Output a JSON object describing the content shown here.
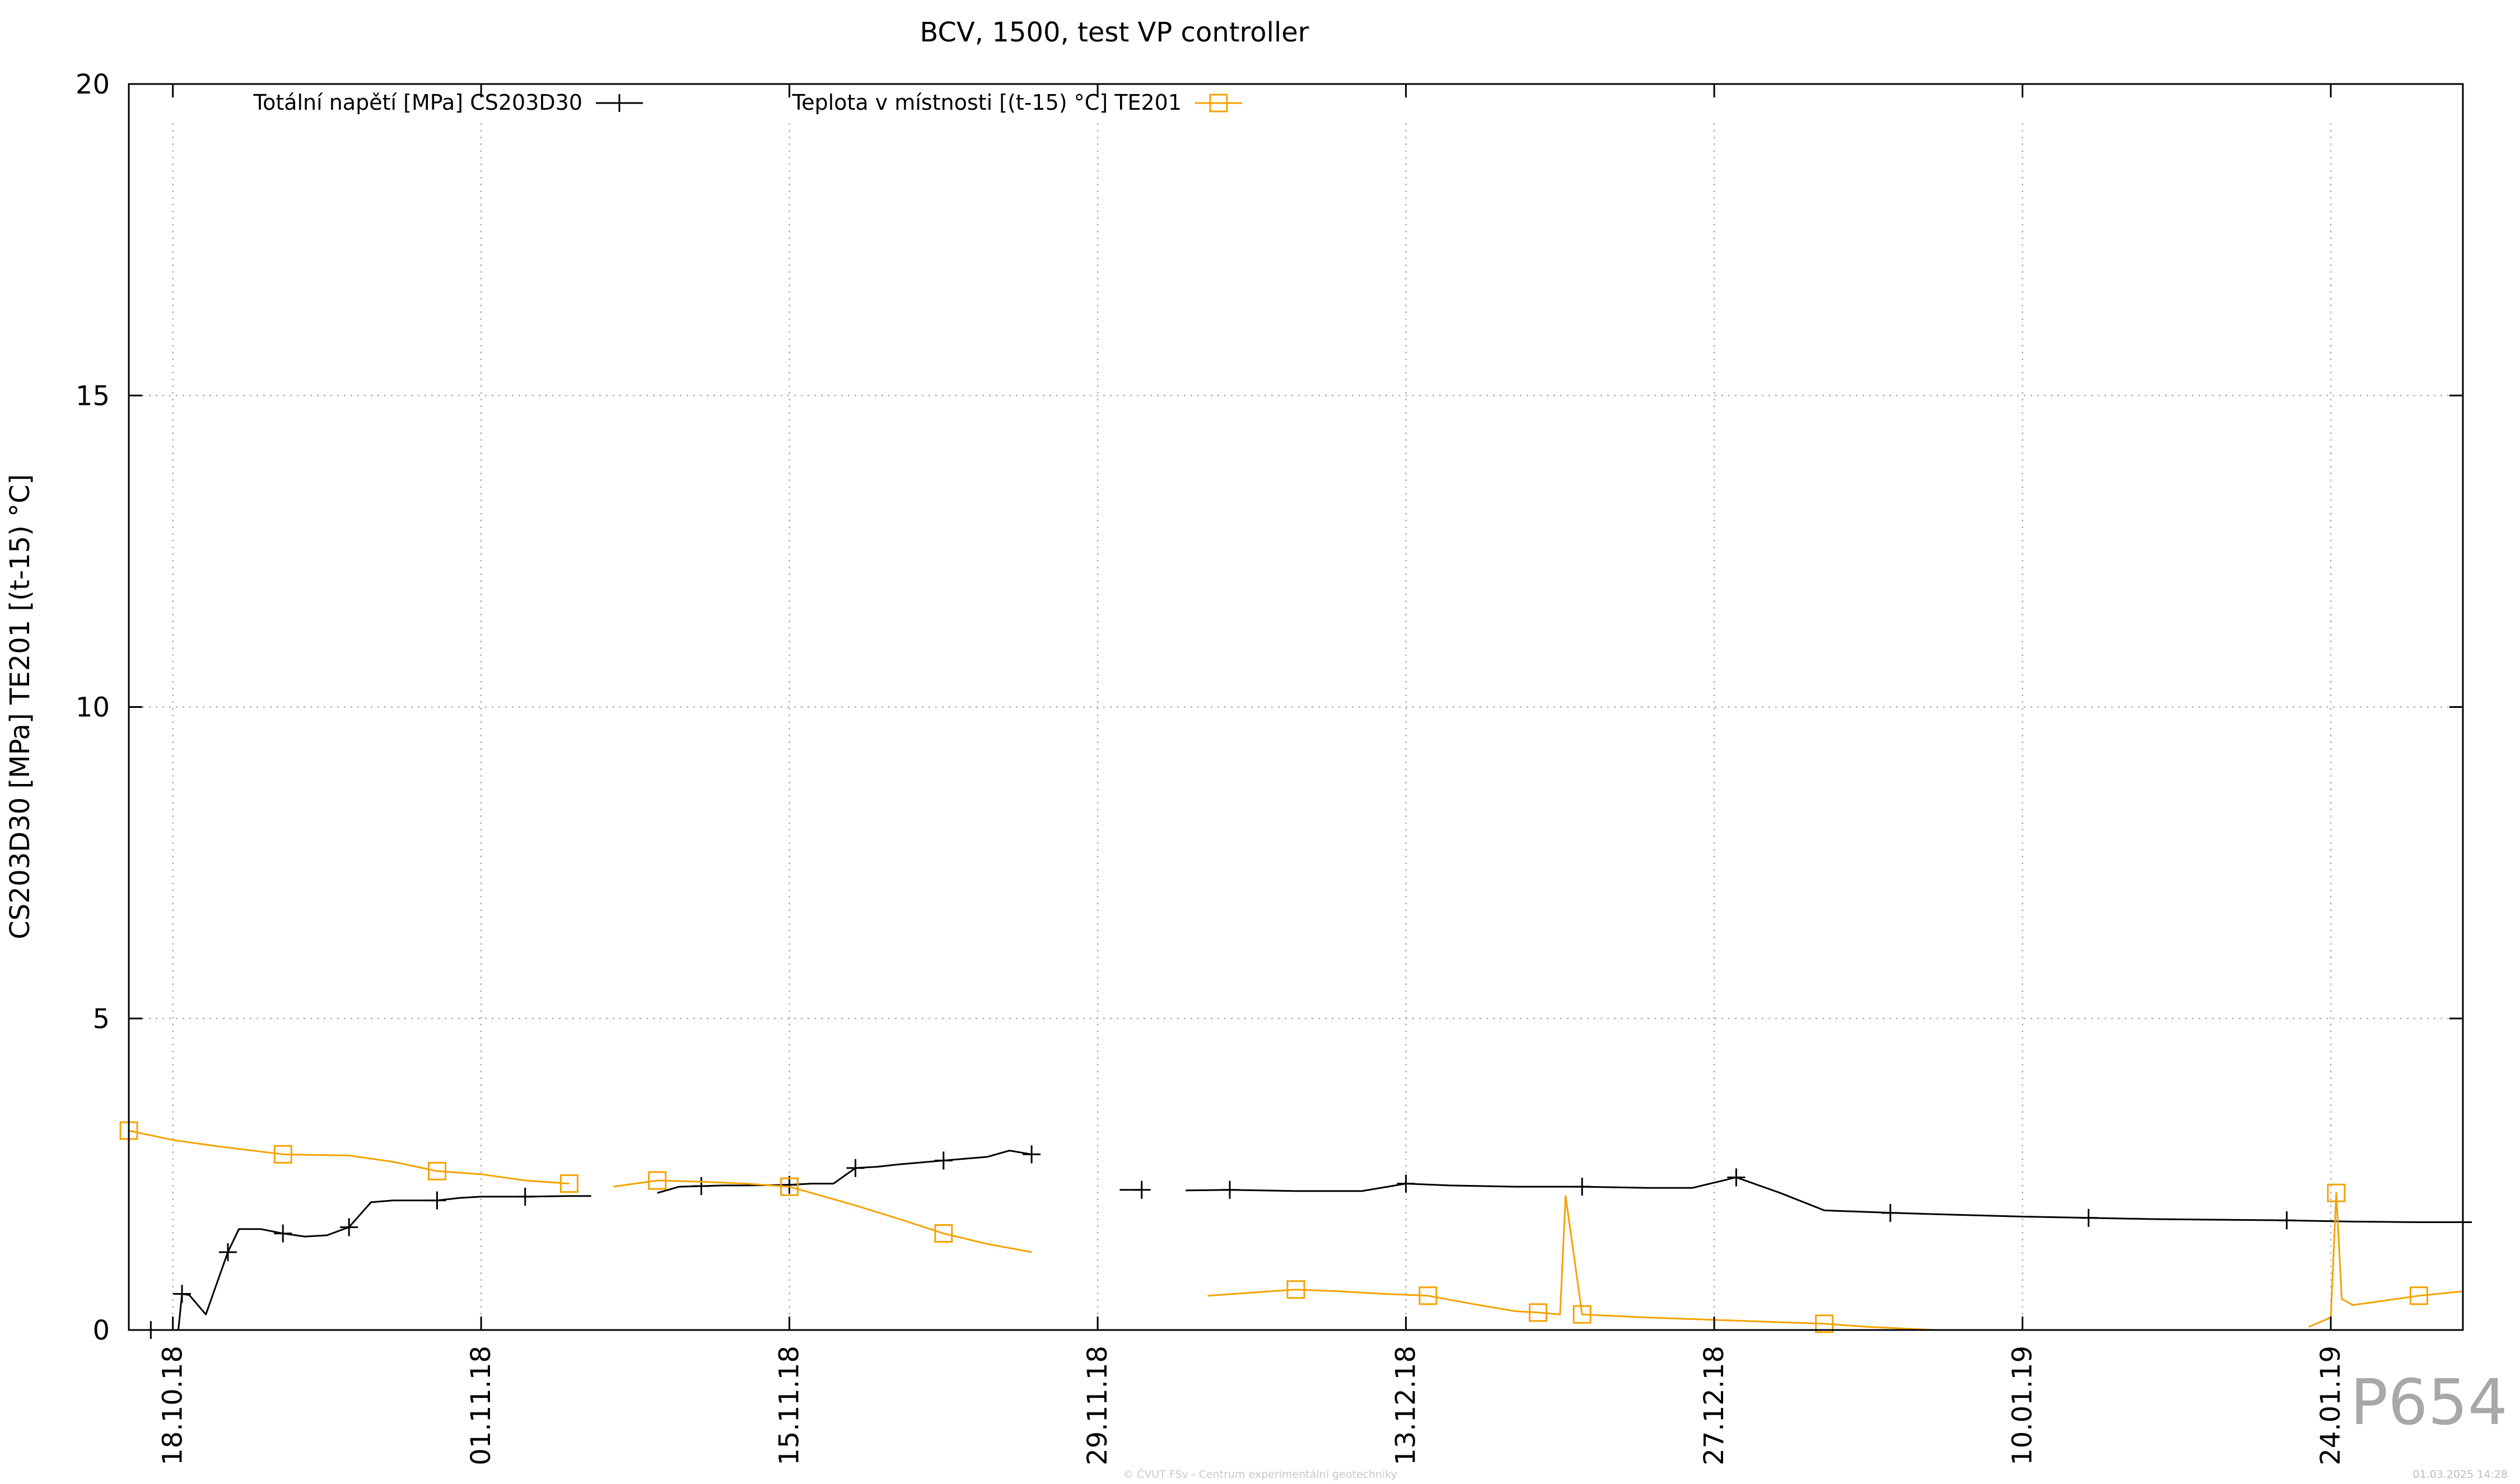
{
  "chart_data": {
    "type": "line",
    "title": "BCV, 1500, test VP controller",
    "ylabel": "CS203D30 [MPa] TE201 [(t-15) °C]",
    "xlabel": "",
    "ylim": [
      0,
      20
    ],
    "y_ticks": [
      "0",
      "5",
      "10",
      "15",
      "20"
    ],
    "x_ticks": [
      "18.10.18",
      "01.11.18",
      "15.11.18",
      "29.11.18",
      "13.12.18",
      "27.12.18",
      "10.01.19",
      "24.01.19"
    ],
    "xlim": [
      "2018-10-16",
      "2019-01-30"
    ],
    "grid": true,
    "legend_position": "top",
    "series": [
      {
        "name": "Totální napětí [MPa] CS203D30",
        "color": "#000000",
        "marker": "plus",
        "x": [
          "2018-10-17",
          "2018-10-17T12:00",
          "2018-10-18T06:00",
          "2018-10-18T10:00",
          "2018-10-18T18:00",
          "2018-10-19T12:00",
          "2018-10-20T12:00",
          "2018-10-21",
          "2018-10-22",
          "2018-10-23",
          "2018-10-24",
          "2018-10-25",
          "2018-10-26",
          "2018-10-27",
          "2018-10-28",
          "2018-10-30",
          "2018-10-31",
          "2018-11-01",
          "2018-11-03",
          "2018-11-05",
          "2018-11-06",
          null,
          "2018-11-09",
          "2018-11-10",
          "2018-11-11",
          "2018-11-12",
          "2018-11-13",
          "2018-11-15",
          "2018-11-16",
          "2018-11-17",
          "2018-11-18",
          "2018-11-19",
          "2018-11-20",
          "2018-11-22",
          "2018-11-24",
          "2018-11-25",
          "2018-11-26",
          null,
          "2018-11-30",
          "2018-12-01",
          null,
          "2018-12-03",
          "2018-12-05",
          "2018-12-08",
          "2018-12-11",
          "2018-12-13",
          "2018-12-15",
          "2018-12-18",
          "2018-12-21",
          "2018-12-24",
          "2018-12-26",
          "2018-12-28",
          "2018-12-30",
          "2019-01-01",
          "2019-01-04",
          "2019-01-07",
          "2019-01-10",
          "2019-01-13",
          "2019-01-16",
          "2019-01-19",
          "2019-01-22",
          "2019-01-25",
          "2019-01-28",
          "2019-01-30"
        ],
        "values": [
          0.0,
          0.0,
          0.0,
          0.58,
          0.56,
          0.25,
          1.25,
          1.62,
          1.62,
          1.55,
          1.5,
          1.52,
          1.65,
          2.05,
          2.08,
          2.08,
          2.12,
          2.14,
          2.14,
          2.15,
          2.15,
          null,
          2.2,
          2.3,
          2.31,
          2.32,
          2.32,
          2.33,
          2.35,
          2.35,
          2.6,
          2.62,
          2.66,
          2.72,
          2.78,
          2.88,
          2.82,
          null,
          2.25,
          2.25,
          null,
          2.24,
          2.25,
          2.23,
          2.23,
          2.35,
          2.32,
          2.3,
          2.3,
          2.28,
          2.28,
          2.45,
          2.2,
          1.92,
          1.88,
          1.85,
          1.82,
          1.8,
          1.78,
          1.77,
          1.76,
          1.74,
          1.73,
          1.73
        ]
      },
      {
        "name": "Teplota v místnosti [(t-15) °C] TE201",
        "color": "#f5a200",
        "marker": "square",
        "x": [
          "2018-10-16",
          "2018-10-18",
          "2018-10-20",
          "2018-10-23",
          "2018-10-26",
          "2018-10-28",
          "2018-10-30",
          "2018-11-01",
          "2018-11-03",
          "2018-11-05",
          null,
          "2018-11-07",
          "2018-11-09",
          "2018-11-11",
          "2018-11-13",
          "2018-11-15",
          "2018-11-18",
          "2018-11-20",
          "2018-11-22",
          "2018-11-24",
          "2018-11-26",
          null,
          "2018-12-04",
          "2018-12-06",
          "2018-12-08",
          "2018-12-10",
          "2018-12-12",
          "2018-12-14",
          "2018-12-16",
          "2018-12-18",
          "2018-12-19",
          "2018-12-20",
          "2018-12-20T06:00",
          "2018-12-21",
          "2018-12-24",
          "2018-12-28",
          "2019-01-01",
          "2019-01-03",
          "2019-01-06",
          null,
          "2019-01-23",
          "2019-01-24",
          "2019-01-24T06:00",
          "2019-01-24T12:00",
          "2019-01-25",
          "2019-01-28",
          "2019-01-30"
        ],
        "values": [
          3.2,
          3.05,
          2.95,
          2.82,
          2.8,
          2.7,
          2.55,
          2.5,
          2.4,
          2.35,
          null,
          2.3,
          2.4,
          2.38,
          2.35,
          2.3,
          2.0,
          1.78,
          1.55,
          1.38,
          1.25,
          null,
          0.55,
          0.6,
          0.65,
          0.62,
          0.58,
          0.55,
          0.42,
          0.3,
          0.28,
          0.25,
          2.15,
          0.25,
          0.2,
          0.15,
          0.1,
          0.05,
          0.0,
          null,
          0.05,
          0.2,
          2.2,
          0.5,
          0.4,
          0.55,
          0.62
        ]
      }
    ]
  },
  "page_code": "P654",
  "footer_center": "© ČVUT FSv - Centrum experimentální geotechniky",
  "footer_right": "01.03.2025 14:28"
}
